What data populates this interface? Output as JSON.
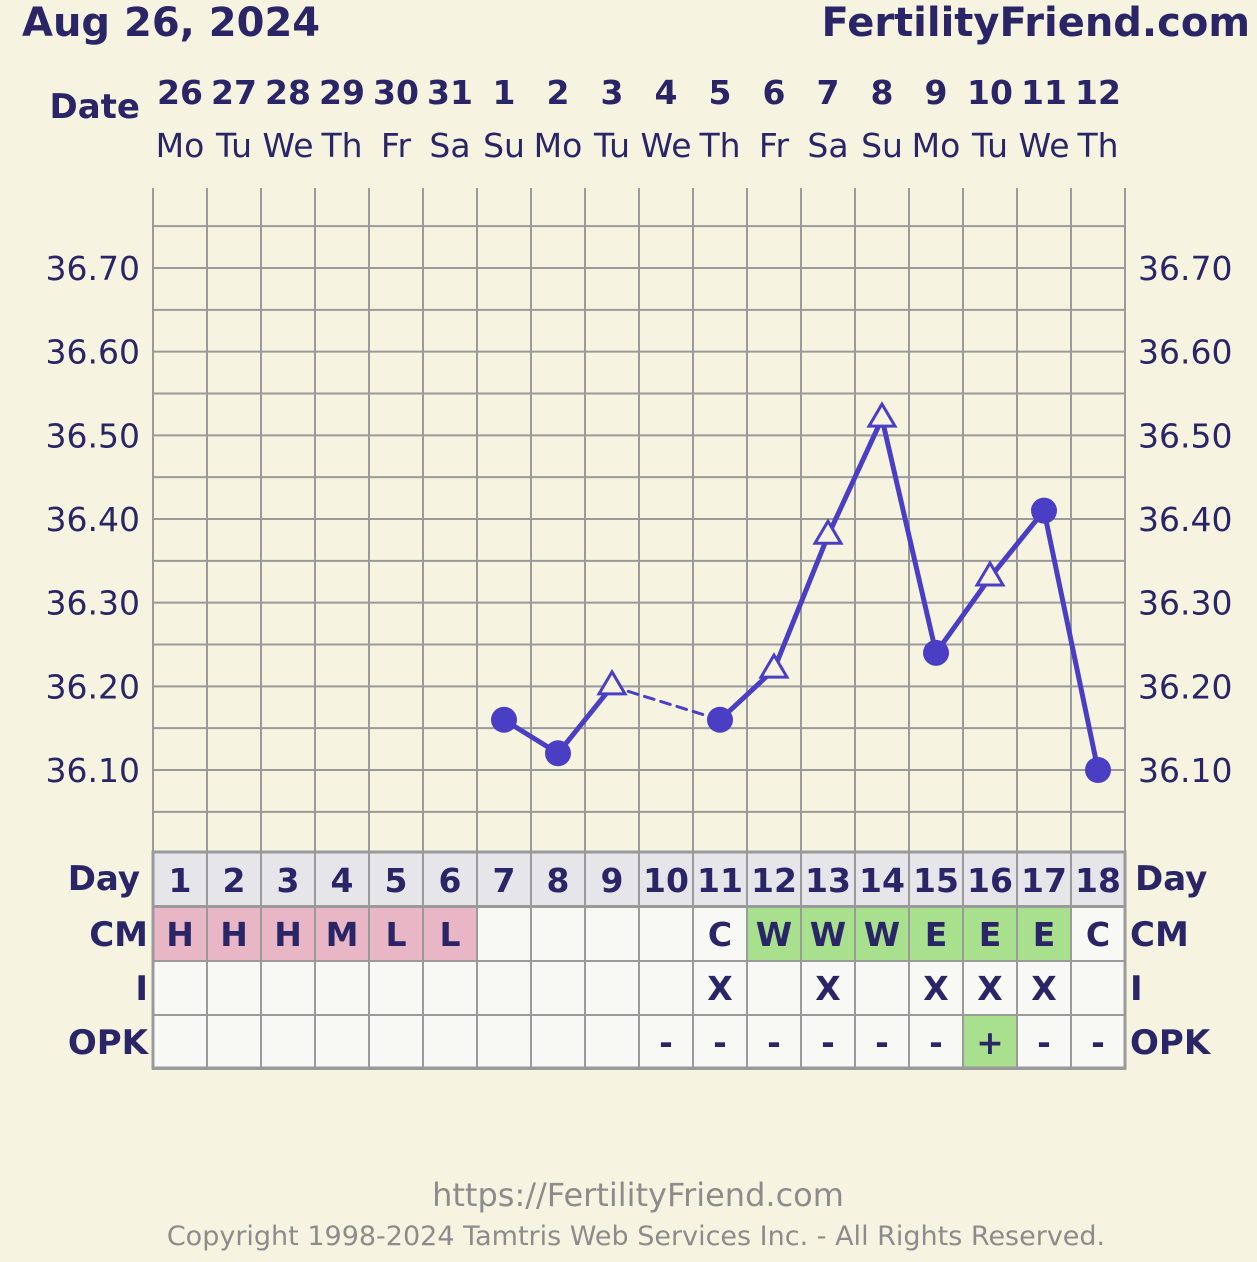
{
  "header": {
    "date": "Aug 26, 2024",
    "site": "FertilityFriend.com"
  },
  "labels": {
    "date": "Date",
    "day": "Day",
    "cm": "CM",
    "i": "I",
    "opk": "OPK"
  },
  "footer": {
    "url": "https://FertilityFriend.com",
    "copyright": "Copyright 1998-2024 Tamtris Web Services Inc. - All Rights Reserved."
  },
  "colors": {
    "line": "#4a3fc4",
    "grid": "#9a9a9a",
    "cm_pink": "#e9b6c6",
    "cm_green": "#a8e08e",
    "opk_green": "#a8e08e",
    "day_row": "#e6e6ea",
    "cell": "#f8f8f4"
  },
  "chart_data": {
    "type": "line",
    "dates": [
      "26",
      "27",
      "28",
      "29",
      "30",
      "31",
      "1",
      "2",
      "3",
      "4",
      "5",
      "6",
      "7",
      "8",
      "9",
      "10",
      "11",
      "12"
    ],
    "weekdays": [
      "Mo",
      "Tu",
      "We",
      "Th",
      "Fr",
      "Sa",
      "Su",
      "Mo",
      "Tu",
      "We",
      "Th",
      "Fr",
      "Sa",
      "Su",
      "Mo",
      "Tu",
      "We",
      "Th"
    ],
    "cycle_days": [
      "1",
      "2",
      "3",
      "4",
      "5",
      "6",
      "7",
      "8",
      "9",
      "10",
      "11",
      "12",
      "13",
      "14",
      "15",
      "16",
      "17",
      "18"
    ],
    "temperatures": [
      null,
      null,
      null,
      null,
      null,
      null,
      36.16,
      36.12,
      36.2,
      null,
      36.16,
      36.22,
      36.38,
      36.52,
      36.24,
      36.33,
      36.41,
      36.1
    ],
    "marker_types": [
      null,
      null,
      null,
      null,
      null,
      null,
      "dot",
      "dot",
      "triangle",
      null,
      "dot",
      "triangle",
      "triangle",
      "triangle",
      "dot",
      "triangle",
      "dot",
      "dot"
    ],
    "dashed_segments": [
      [
        8,
        10
      ]
    ],
    "y_ticks": [
      "36.70",
      "36.60",
      "36.50",
      "36.40",
      "36.30",
      "36.20",
      "36.10"
    ],
    "y_tick_values": [
      36.7,
      36.6,
      36.5,
      36.4,
      36.3,
      36.2,
      36.1
    ],
    "ylim": [
      36.0,
      36.8
    ],
    "grid_step": 0.05,
    "cm": [
      "H",
      "H",
      "H",
      "M",
      "L",
      "L",
      "",
      "",
      "",
      "",
      "C",
      "W",
      "W",
      "W",
      "E",
      "E",
      "E",
      "C"
    ],
    "cm_highlight": [
      "pink",
      "pink",
      "pink",
      "pink",
      "pink",
      "pink",
      "",
      "",
      "",
      "",
      "",
      "green",
      "green",
      "green",
      "green",
      "green",
      "green",
      ""
    ],
    "intercourse": [
      "",
      "",
      "",
      "",
      "",
      "",
      "",
      "",
      "",
      "",
      "X",
      "",
      "X",
      "",
      "X",
      "X",
      "X",
      ""
    ],
    "opk": [
      "",
      "",
      "",
      "",
      "",
      "",
      "",
      "",
      "",
      "-",
      "-",
      "-",
      "-",
      "-",
      "-",
      "+",
      "-",
      "-"
    ],
    "opk_highlight": [
      "",
      "",
      "",
      "",
      "",
      "",
      "",
      "",
      "",
      "",
      "",
      "",
      "",
      "",
      "",
      "green",
      "",
      ""
    ]
  }
}
